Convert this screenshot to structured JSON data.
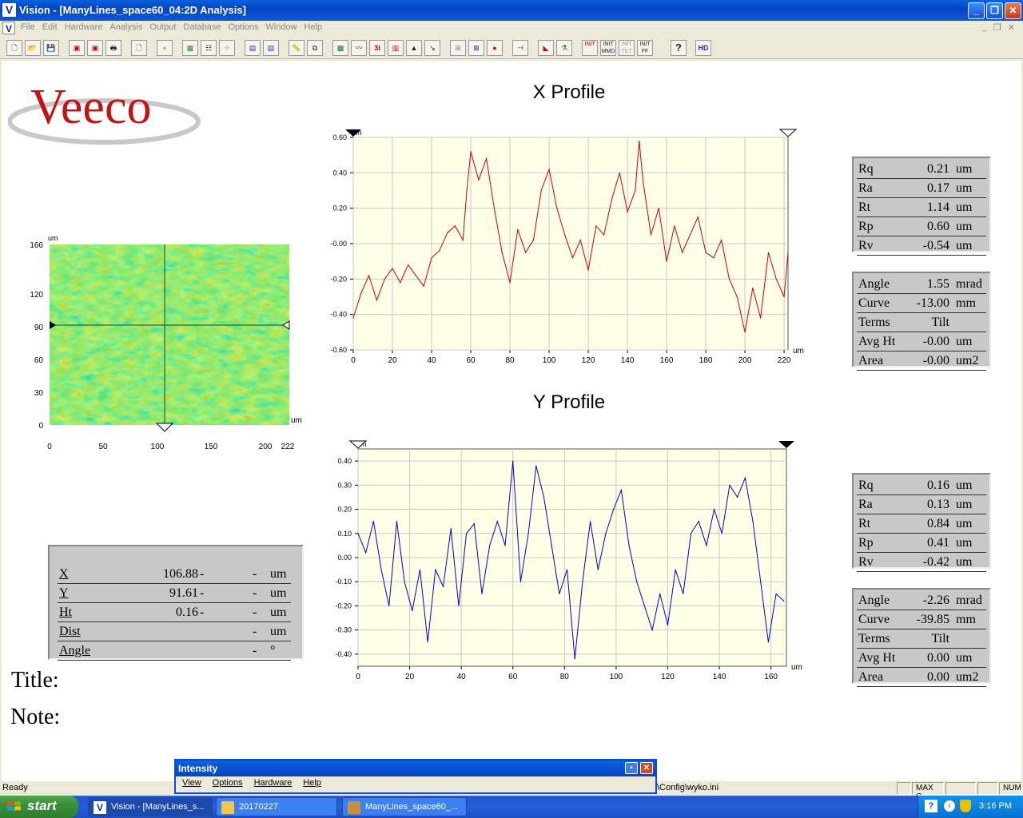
{
  "window": {
    "app_icon": "V",
    "title": "Vision - [ManyLines_space60_04:2D Analysis]",
    "controls": [
      "minimize",
      "maximize",
      "close"
    ]
  },
  "menu": {
    "items": [
      "File",
      "Edit",
      "Hardware",
      "Analysis",
      "Output",
      "Database",
      "Options",
      "Window",
      "Help"
    ]
  },
  "toolbar": {
    "buttons": [
      {
        "name": "new-icon",
        "label": ""
      },
      {
        "name": "open-icon",
        "label": ""
      },
      {
        "name": "save-icon",
        "label": ""
      },
      {
        "name": "HD",
        "label": "HD"
      },
      {
        "name": "init-mmd",
        "label": "INIT MMD"
      },
      {
        "name": "init-tilt",
        "label": "INIT TILT"
      },
      {
        "name": "init-ff",
        "label": "INIT FF"
      },
      {
        "name": "help-icon",
        "label": "?"
      }
    ]
  },
  "logo": {
    "text": "Veeco",
    "color": "#c01418"
  },
  "map": {
    "unit_top": "um",
    "unit_right": "um",
    "y_ticks": [
      "166",
      "120",
      "90",
      "60",
      "30",
      "0"
    ],
    "x_ticks": [
      "0",
      "50",
      "100",
      "150",
      "200",
      "222"
    ]
  },
  "x_profile": {
    "title": "X Profile",
    "unit_left": "um",
    "unit_right": "um",
    "color": "#cc0000",
    "stats": [
      {
        "name": "Rq",
        "value": "0.21",
        "unit": "um"
      },
      {
        "name": "Ra",
        "value": "0.17",
        "unit": "um"
      },
      {
        "name": "Rt",
        "value": "1.14",
        "unit": "um"
      },
      {
        "name": "Rp",
        "value": "0.60",
        "unit": "um"
      },
      {
        "name": "Rv",
        "value": "-0.54",
        "unit": "um"
      }
    ],
    "terms": [
      {
        "name": "Angle",
        "value": "1.55",
        "unit": "mrad"
      },
      {
        "name": "Curve",
        "value": "-13.00",
        "unit": "mm"
      },
      {
        "name": "Terms",
        "value": "Tilt",
        "unit": ""
      },
      {
        "name": "Avg Ht",
        "value": "-0.00",
        "unit": "um"
      },
      {
        "name": "Area",
        "value": "-0.00",
        "unit": "um2"
      }
    ]
  },
  "y_profile": {
    "title": "Y Profile",
    "unit_left": "um",
    "unit_right": "um",
    "color": "#0000cc",
    "stats": [
      {
        "name": "Rq",
        "value": "0.16",
        "unit": "um"
      },
      {
        "name": "Ra",
        "value": "0.13",
        "unit": "um"
      },
      {
        "name": "Rt",
        "value": "0.84",
        "unit": "um"
      },
      {
        "name": "Rp",
        "value": "0.41",
        "unit": "um"
      },
      {
        "name": "Rv",
        "value": "-0.42",
        "unit": "um"
      }
    ],
    "terms": [
      {
        "name": "Angle",
        "value": "-2.26",
        "unit": "mrad"
      },
      {
        "name": "Curve",
        "value": "-39.85",
        "unit": "mm"
      },
      {
        "name": "Terms",
        "value": "Tilt",
        "unit": ""
      },
      {
        "name": "Avg Ht",
        "value": "0.00",
        "unit": "um"
      },
      {
        "name": "Area",
        "value": "0.00",
        "unit": "um2"
      }
    ]
  },
  "cursor_readout": {
    "rows": [
      {
        "label": "X",
        "value": "106.88",
        "d1": "-",
        "d2": "-",
        "unit": "um"
      },
      {
        "label": "Y",
        "value": "91.61",
        "d1": "-",
        "d2": "-",
        "unit": "um"
      },
      {
        "label": "Ht",
        "value": "0.16",
        "d1": "-",
        "d2": "-",
        "unit": "um"
      },
      {
        "label": "Dist",
        "value": "",
        "d1": "",
        "d2": "-",
        "unit": "um"
      },
      {
        "label": "Angle",
        "value": "",
        "d1": "",
        "d2": "-",
        "unit": "°"
      }
    ]
  },
  "labels": {
    "title": "Title:",
    "note": "Note:"
  },
  "statusbar": {
    "ready": "Ready",
    "config": "\\Config\\wyko.ini",
    "panels": [
      "MAX C",
      "NUM"
    ]
  },
  "intensity_window": {
    "title": "Intensity",
    "menu": [
      "View",
      "Options",
      "Hardware",
      "Help"
    ]
  },
  "taskbar": {
    "start": "start",
    "tasks": [
      {
        "label": "Vision - [ManyLines_s...",
        "active": true
      },
      {
        "label": "20170227",
        "active": false
      },
      {
        "label": "ManyLines_space60_...",
        "active": false
      }
    ],
    "clock": "3:16 PM"
  },
  "chart_data": [
    {
      "type": "line",
      "title": "X Profile",
      "xlabel": "um",
      "ylabel": "um",
      "xlim": [
        0,
        222
      ],
      "ylim": [
        -0.6,
        0.6
      ],
      "x_ticks": [
        0,
        20,
        40,
        60,
        80,
        100,
        120,
        140,
        160,
        180,
        200,
        220
      ],
      "y_ticks": [
        0.6,
        0.4,
        0.2,
        -0.0,
        -0.2,
        -0.4,
        -0.6
      ],
      "y_tick_labels": [
        "0.60",
        "0.40",
        "0.20",
        "-0.00",
        "-0.20",
        "-0.40",
        "-0.60"
      ],
      "grid": true,
      "series": [
        {
          "x": [
            0,
            4,
            8,
            12,
            16,
            20,
            24,
            28,
            32,
            36,
            40,
            44,
            48,
            52,
            56,
            58,
            60,
            64,
            68,
            72,
            76,
            80,
            84,
            88,
            92,
            96,
            100,
            104,
            108,
            112,
            116,
            120,
            124,
            128,
            132,
            136,
            140,
            144,
            146,
            148,
            152,
            156,
            160,
            164,
            168,
            172,
            176,
            180,
            184,
            188,
            192,
            196,
            200,
            204,
            208,
            212,
            216,
            220,
            222
          ],
          "values": [
            -0.42,
            -0.28,
            -0.18,
            -0.32,
            -0.2,
            -0.14,
            -0.22,
            -0.12,
            -0.18,
            -0.24,
            -0.08,
            -0.04,
            0.06,
            0.1,
            0.02,
            0.3,
            0.52,
            0.36,
            0.48,
            0.2,
            -0.05,
            -0.22,
            0.08,
            -0.05,
            0.02,
            0.3,
            0.42,
            0.2,
            0.05,
            -0.08,
            0.02,
            -0.15,
            0.1,
            0.05,
            0.25,
            0.4,
            0.18,
            0.3,
            0.58,
            0.35,
            0.05,
            0.2,
            -0.1,
            0.1,
            -0.05,
            0.05,
            0.15,
            -0.05,
            -0.08,
            0.02,
            -0.2,
            -0.3,
            -0.5,
            -0.25,
            -0.42,
            -0.05,
            -0.2,
            -0.3,
            -0.05
          ]
        }
      ]
    },
    {
      "type": "line",
      "title": "Y Profile",
      "xlabel": "um",
      "ylabel": "um",
      "xlim": [
        0,
        166
      ],
      "ylim": [
        -0.45,
        0.45
      ],
      "x_ticks": [
        0,
        20,
        40,
        60,
        80,
        100,
        120,
        140,
        160
      ],
      "y_ticks": [
        0.4,
        0.3,
        0.2,
        0.1,
        0.0,
        -0.1,
        -0.2,
        -0.3,
        -0.4
      ],
      "y_tick_labels": [
        "0.40",
        "0.30",
        "0.20",
        "0.10",
        "0.00",
        "-0.10",
        "-0.20",
        "-0.30",
        "-0.40"
      ],
      "grid": true,
      "series": [
        {
          "x": [
            0,
            3,
            6,
            9,
            12,
            15,
            18,
            21,
            24,
            27,
            30,
            33,
            36,
            39,
            42,
            45,
            48,
            51,
            54,
            57,
            60,
            63,
            66,
            69,
            72,
            75,
            78,
            81,
            84,
            87,
            90,
            93,
            96,
            99,
            102,
            105,
            108,
            111,
            114,
            117,
            120,
            123,
            126,
            129,
            132,
            135,
            138,
            141,
            144,
            147,
            150,
            153,
            156,
            159,
            162,
            165
          ],
          "values": [
            0.1,
            0.02,
            0.15,
            -0.05,
            -0.2,
            0.15,
            -0.1,
            -0.22,
            -0.05,
            -0.35,
            -0.05,
            -0.12,
            0.12,
            -0.2,
            0.1,
            0.14,
            -0.15,
            0.05,
            0.15,
            0.05,
            0.4,
            -0.1,
            0.1,
            0.38,
            0.25,
            0.05,
            -0.15,
            -0.05,
            -0.42,
            -0.1,
            0.15,
            -0.05,
            0.1,
            0.2,
            0.28,
            0.05,
            -0.1,
            -0.2,
            -0.3,
            -0.15,
            -0.28,
            -0.05,
            -0.15,
            0.1,
            0.15,
            0.05,
            0.2,
            0.1,
            0.3,
            0.25,
            0.33,
            0.15,
            -0.1,
            -0.35,
            -0.15,
            -0.18
          ]
        }
      ]
    }
  ]
}
